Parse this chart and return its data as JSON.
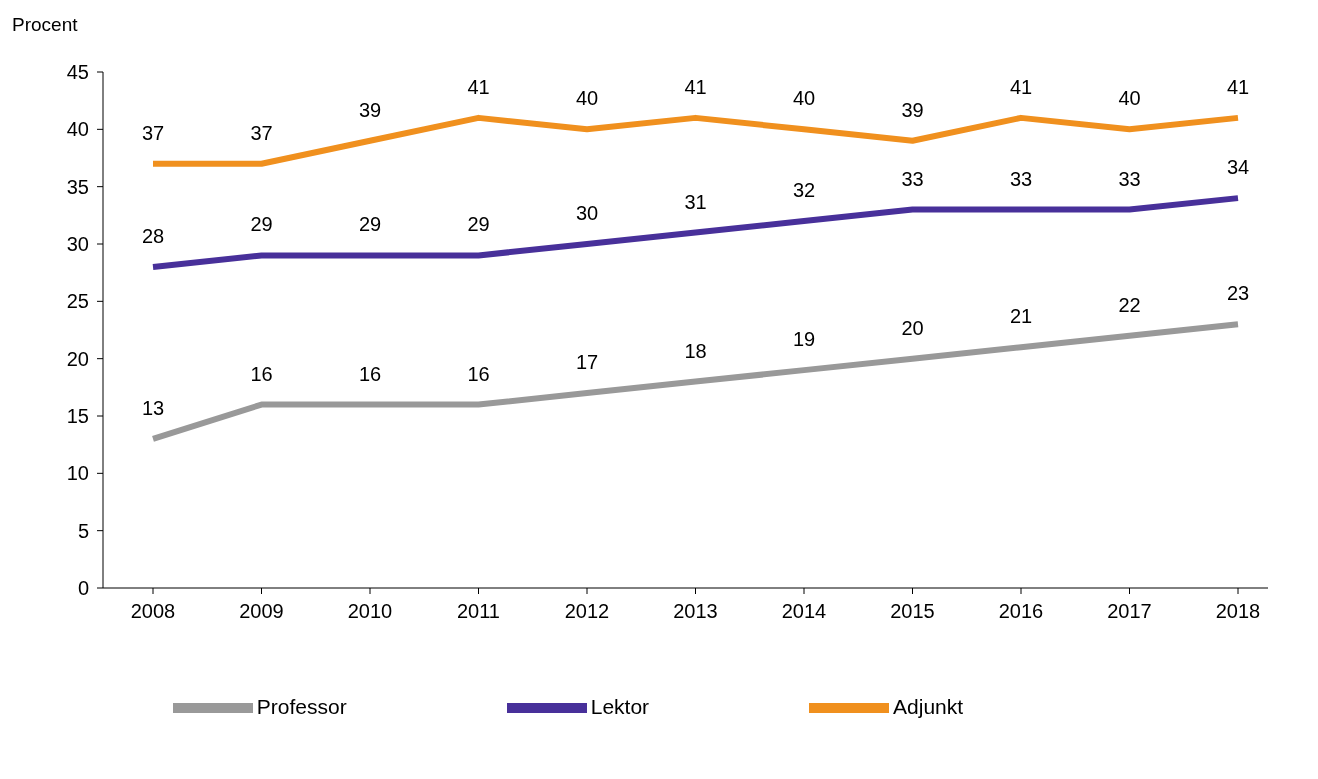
{
  "chart_data": {
    "type": "line",
    "ylabel": "Procent",
    "categories": [
      "2008",
      "2009",
      "2010",
      "2011",
      "2012",
      "2013",
      "2014",
      "2015",
      "2016",
      "2017",
      "2018"
    ],
    "series": [
      {
        "name": "Professor",
        "color": "#999999",
        "values": [
          13,
          16,
          16,
          16,
          17,
          18,
          19,
          20,
          21,
          22,
          23
        ]
      },
      {
        "name": "Lektor",
        "color": "#48309a",
        "values": [
          28,
          29,
          29,
          29,
          30,
          31,
          32,
          33,
          33,
          33,
          34
        ]
      },
      {
        "name": "Adjunkt",
        "color": "#f0901e",
        "values": [
          37,
          37,
          39,
          41,
          40,
          41,
          40,
          39,
          41,
          40,
          41
        ]
      }
    ],
    "ylim": [
      0,
      45
    ],
    "yticks": [
      0,
      5,
      10,
      15,
      20,
      25,
      30,
      35,
      40,
      45
    ],
    "grid": false,
    "legend": "bottom",
    "marker": "none",
    "line_style": "solid",
    "data_labels": true
  }
}
